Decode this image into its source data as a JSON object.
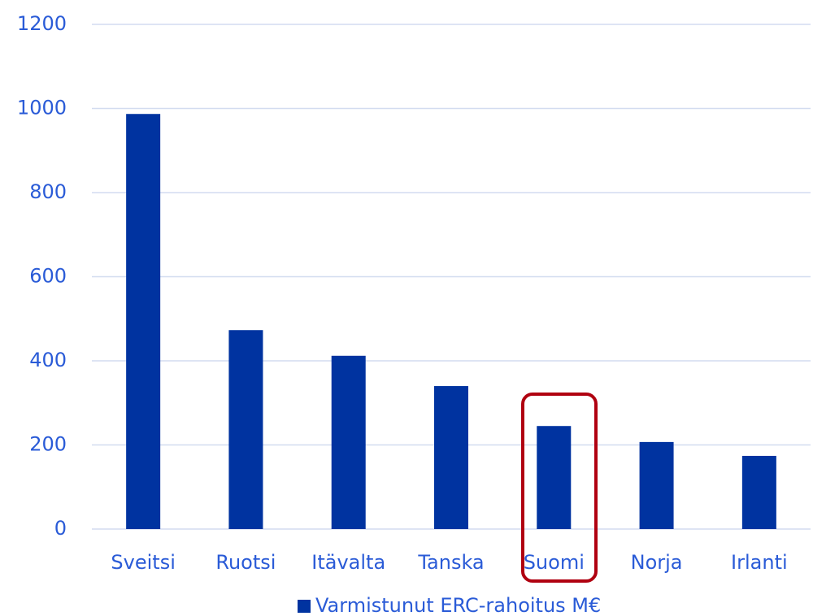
{
  "chart_data": {
    "type": "bar",
    "categories": [
      "Sveitsi",
      "Ruotsi",
      "Itävalta",
      "Tanska",
      "Suomi",
      "Norja",
      "Irlanti"
    ],
    "series": [
      {
        "name": "Varmistunut ERC-rahoitus M€",
        "color": "#0033a0",
        "values": [
          987,
          473,
          412,
          340,
          245,
          207,
          174
        ]
      }
    ],
    "ylim": [
      0,
      1200
    ],
    "yticks": [
      0,
      200,
      400,
      600,
      800,
      1000,
      1200
    ],
    "grid": true,
    "legend": "bottom"
  }
}
